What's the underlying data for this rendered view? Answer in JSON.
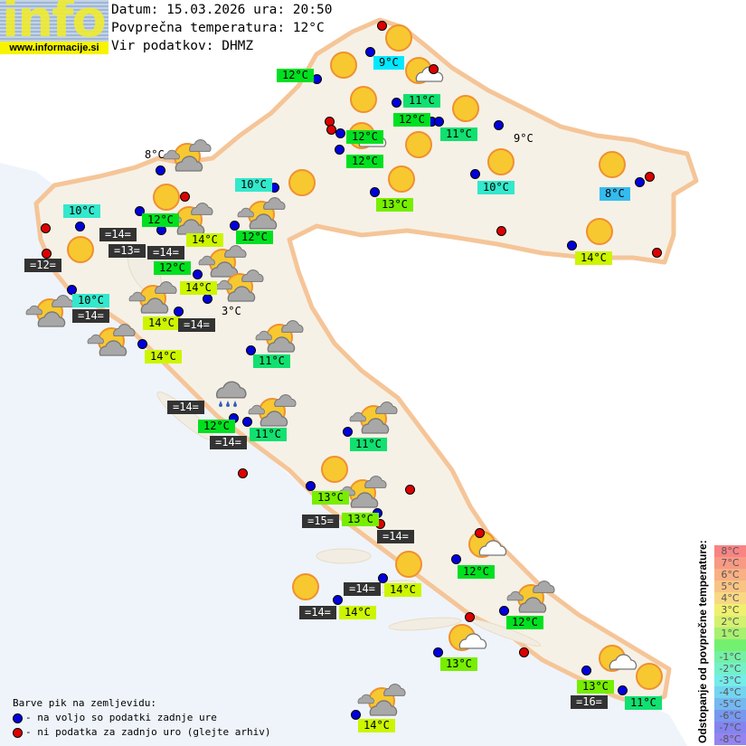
{
  "logo": {
    "word": "info",
    "url": "www.informacije.si"
  },
  "header": {
    "date_line": "Datum: 15.03.2026 ura: 20:50",
    "avg_line": "Povprečna temperatura: 12°C",
    "source_line": "Vir podatkov: DHMZ"
  },
  "colors": {
    "dot_ok": "#0000dd",
    "dot_missing": "#dd0000",
    "sea": "#eef4fa",
    "land": "#f6f1e6",
    "border": "#f5c598"
  },
  "temp_colors": {
    "14": "#ccf500",
    "13": "#77ee00",
    "12": "#00e020",
    "11": "#11e070",
    "10": "#33e8cc",
    "9": "#00e8ff",
    "8": "#33bbee",
    "dark": "#333333"
  },
  "labels": [
    {
      "text": "12°C",
      "c": "12"
    },
    {
      "text": "9°C",
      "c": "9"
    },
    {
      "text": "11°C",
      "c": "11"
    },
    {
      "text": "12°C",
      "c": "12"
    },
    {
      "text": "11°C",
      "c": "11"
    },
    {
      "text": "9°C",
      "c": "plain"
    },
    {
      "text": "12°C",
      "c": "12"
    },
    {
      "text": "12°C",
      "c": "12"
    },
    {
      "text": "10°C",
      "c": "10"
    },
    {
      "text": "10°C",
      "c": "10"
    },
    {
      "text": "8°C",
      "c": "8"
    },
    {
      "text": "13°C",
      "c": "13"
    },
    {
      "text": "14°C",
      "c": "14"
    },
    {
      "text": "8°C",
      "c": "plain"
    },
    {
      "text": "10°C",
      "c": "10"
    },
    {
      "text": "12°C",
      "c": "12"
    },
    {
      "text": "12°C",
      "c": "12"
    },
    {
      "text": "=14=",
      "c": "dark"
    },
    {
      "text": "14°C",
      "c": "14"
    },
    {
      "text": "12°C",
      "c": "12"
    },
    {
      "text": "=13=",
      "c": "dark"
    },
    {
      "text": "=14=",
      "c": "dark"
    },
    {
      "text": "=12=",
      "c": "dark"
    },
    {
      "text": "14°C",
      "c": "14"
    },
    {
      "text": "10°C",
      "c": "10"
    },
    {
      "text": "=14=",
      "c": "dark"
    },
    {
      "text": "14°C",
      "c": "14"
    },
    {
      "text": "=14=",
      "c": "dark"
    },
    {
      "text": "3°C",
      "c": "plain"
    },
    {
      "text": "14°C",
      "c": "14"
    },
    {
      "text": "11°C",
      "c": "11"
    },
    {
      "text": "=14=",
      "c": "dark"
    },
    {
      "text": "12°C",
      "c": "12"
    },
    {
      "text": "=14=",
      "c": "dark"
    },
    {
      "text": "11°C",
      "c": "11"
    },
    {
      "text": "11°C",
      "c": "11"
    },
    {
      "text": "13°C",
      "c": "13"
    },
    {
      "text": "=15=",
      "c": "dark"
    },
    {
      "text": "13°C",
      "c": "13"
    },
    {
      "text": "=14=",
      "c": "dark"
    },
    {
      "text": "12°C",
      "c": "12"
    },
    {
      "text": "=14=",
      "c": "dark"
    },
    {
      "text": "14°C",
      "c": "14"
    },
    {
      "text": "12°C",
      "c": "12"
    },
    {
      "text": "=14=",
      "c": "dark"
    },
    {
      "text": "14°C",
      "c": "14"
    },
    {
      "text": "13°C",
      "c": "13"
    },
    {
      "text": "13°C",
      "c": "13"
    },
    {
      "text": "=16=",
      "c": "dark"
    },
    {
      "text": "11°C",
      "c": "11"
    },
    {
      "text": "14°C",
      "c": "14"
    }
  ],
  "icons": [
    "sunny",
    "sunny",
    "sun-white-cloud",
    "sunny",
    "sunny",
    "sun-white-cloud",
    "sunny",
    "sunny",
    "sunny",
    "sunny",
    "sunny",
    "sunny",
    "sunny",
    "partly-cloudy",
    "partly-cloudy",
    "partly-cloudy",
    "sunny",
    "partly-cloudy",
    "partly-cloudy",
    "partly-cloudy",
    "partly-cloudy",
    "partly-cloudy",
    "partly-cloudy",
    "rain",
    "partly-cloudy",
    "partly-cloudy",
    "sunny",
    "partly-cloudy",
    "sun-white-cloud",
    "sunny",
    "sunny",
    "partly-cloudy",
    "sun-white-cloud",
    "sun-white-cloud",
    "sunny",
    "partly-cloudy"
  ],
  "legend": {
    "title": "Barve pik na zemljevidu:",
    "ok": "- na voljo so podatki zadnje ure",
    "missing": "- ni podatka za zadnjo uro (glejte arhiv)"
  },
  "scale": {
    "title": "Odstopanje od povprečne temperature:",
    "steps": [
      {
        "label": "8°C",
        "color": "#f88484"
      },
      {
        "label": "7°C",
        "color": "#f89a84"
      },
      {
        "label": "6°C",
        "color": "#f8b084"
      },
      {
        "label": "5°C",
        "color": "#f8c484"
      },
      {
        "label": "4°C",
        "color": "#f8d884"
      },
      {
        "label": "3°C",
        "color": "#f0f070"
      },
      {
        "label": "2°C",
        "color": "#d4f070"
      },
      {
        "label": "1°C",
        "color": "#a8f070"
      },
      {
        "label": "",
        "color": "#74f070"
      },
      {
        "label": "-1°C",
        "color": "#74f0a4"
      },
      {
        "label": "-2°C",
        "color": "#74f0c8"
      },
      {
        "label": "-3°C",
        "color": "#74ece8"
      },
      {
        "label": "-4°C",
        "color": "#74d4f0"
      },
      {
        "label": "-5°C",
        "color": "#74b8f0"
      },
      {
        "label": "-6°C",
        "color": "#7898f0"
      },
      {
        "label": "-7°C",
        "color": "#8484f0"
      },
      {
        "label": "-8°C",
        "color": "#9484f0"
      }
    ]
  }
}
